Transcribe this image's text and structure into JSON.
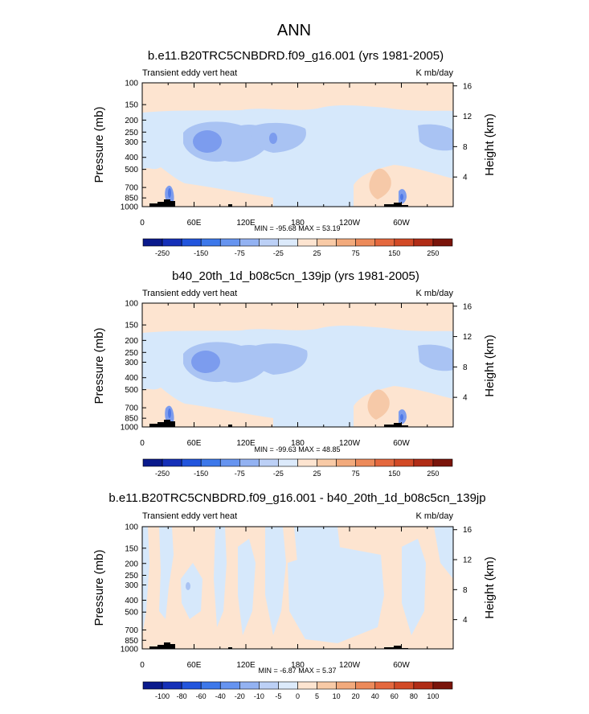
{
  "main_title": "ANN",
  "chart_data": [
    {
      "type": "heatmap",
      "title": "b.e11.B20TRC5CNBDRD.f09_g16.001 (yrs 1981-2005)",
      "left_string": "Transient eddy vert heat",
      "right_string": "K mb/day",
      "ylabel": "Pressure (mb)",
      "ylabel_right": "Height (km)",
      "x_ticks": [
        "0",
        "60E",
        "120E",
        "180",
        "120W",
        "60W"
      ],
      "x_tick_values": [
        0,
        60,
        120,
        180,
        240,
        300
      ],
      "xlim": [
        0,
        360
      ],
      "y_scale": "log",
      "ylim": [
        1000,
        100
      ],
      "y_ticks": [
        "100",
        "150",
        "200",
        "250",
        "300",
        "400",
        "500",
        "700",
        "850",
        "1000"
      ],
      "y_tick_values": [
        100,
        150,
        200,
        250,
        300,
        400,
        500,
        700,
        850,
        1000
      ],
      "y_right_ticks": [
        "4",
        "8",
        "12",
        "16"
      ],
      "y_right_values": [
        4,
        8,
        12,
        16
      ],
      "stats": "MIN = -95.68  MAX = 53.19",
      "colorbar_labels": [
        "-250",
        "-150",
        "-75",
        "-25",
        "25",
        "75",
        "150",
        "250"
      ]
    },
    {
      "type": "heatmap",
      "title": "b40_20th_1d_b08c5cn_139jp (yrs 1981-2005)",
      "left_string": "Transient eddy vert heat",
      "right_string": "K mb/day",
      "ylabel": "Pressure (mb)",
      "ylabel_right": "Height (km)",
      "x_ticks": [
        "0",
        "60E",
        "120E",
        "180",
        "120W",
        "60W"
      ],
      "x_tick_values": [
        0,
        60,
        120,
        180,
        240,
        300
      ],
      "xlim": [
        0,
        360
      ],
      "y_scale": "log",
      "ylim": [
        1000,
        100
      ],
      "y_ticks": [
        "100",
        "150",
        "200",
        "250",
        "300",
        "400",
        "500",
        "700",
        "850",
        "1000"
      ],
      "y_tick_values": [
        100,
        150,
        200,
        250,
        300,
        400,
        500,
        700,
        850,
        1000
      ],
      "y_right_ticks": [
        "4",
        "8",
        "12",
        "16"
      ],
      "y_right_values": [
        4,
        8,
        12,
        16
      ],
      "stats": "MIN = -99.63  MAX = 48.85",
      "colorbar_labels": [
        "-250",
        "-150",
        "-75",
        "-25",
        "25",
        "75",
        "150",
        "250"
      ]
    },
    {
      "type": "heatmap",
      "title": "b.e11.B20TRC5CNBDRD.f09_g16.001 - b40_20th_1d_b08c5cn_139jp",
      "left_string": "Transient eddy vert heat",
      "right_string": "K mb/day",
      "ylabel": "Pressure (mb)",
      "ylabel_right": "Height (km)",
      "x_ticks": [
        "0",
        "60E",
        "120E",
        "180",
        "120W",
        "60W"
      ],
      "x_tick_values": [
        0,
        60,
        120,
        180,
        240,
        300
      ],
      "xlim": [
        0,
        360
      ],
      "y_scale": "log",
      "ylim": [
        1000,
        100
      ],
      "y_ticks": [
        "100",
        "150",
        "200",
        "250",
        "300",
        "400",
        "500",
        "700",
        "850",
        "1000"
      ],
      "y_tick_values": [
        100,
        150,
        200,
        250,
        300,
        400,
        500,
        700,
        850,
        1000
      ],
      "y_right_ticks": [
        "4",
        "8",
        "12",
        "16"
      ],
      "y_right_values": [
        4,
        8,
        12,
        16
      ],
      "stats": "MIN = -6.87  MAX = 5.37",
      "colorbar_labels": [
        "-100",
        "-80",
        "-60",
        "-40",
        "-20",
        "-10",
        "-5",
        "0",
        "5",
        "10",
        "20",
        "40",
        "60",
        "80",
        "100"
      ]
    }
  ],
  "colorbar_colors_abs": [
    "#0a1a8c",
    "#1530b8",
    "#2255dd",
    "#3d78ea",
    "#6694f0",
    "#93b2f2",
    "#bcd0f6",
    "#dceafb",
    "#fde4d0",
    "#f8caa6",
    "#f2aa7c",
    "#ec8a5a",
    "#e4683e",
    "#d24a26",
    "#b02c16",
    "#7a140a"
  ],
  "colorbar_colors_diff": [
    "#0a1a8c",
    "#1530b8",
    "#2255dd",
    "#3d78ea",
    "#6694f0",
    "#93b2f2",
    "#bcd0f6",
    "#dceafb",
    "#fde4d0",
    "#f8caa6",
    "#f2aa7c",
    "#ec8a5a",
    "#e4683e",
    "#d24a26",
    "#b02c16",
    "#7a140a"
  ],
  "field_colors": {
    "light_blue": "#d6e8fb",
    "mid_blue": "#a9c3f3",
    "strong_blue": "#7c9cee",
    "deep_blue": "#4f78e6",
    "light_peach": "#fde4d0",
    "mid_peach": "#f6c9a8",
    "topography": "#000000"
  }
}
